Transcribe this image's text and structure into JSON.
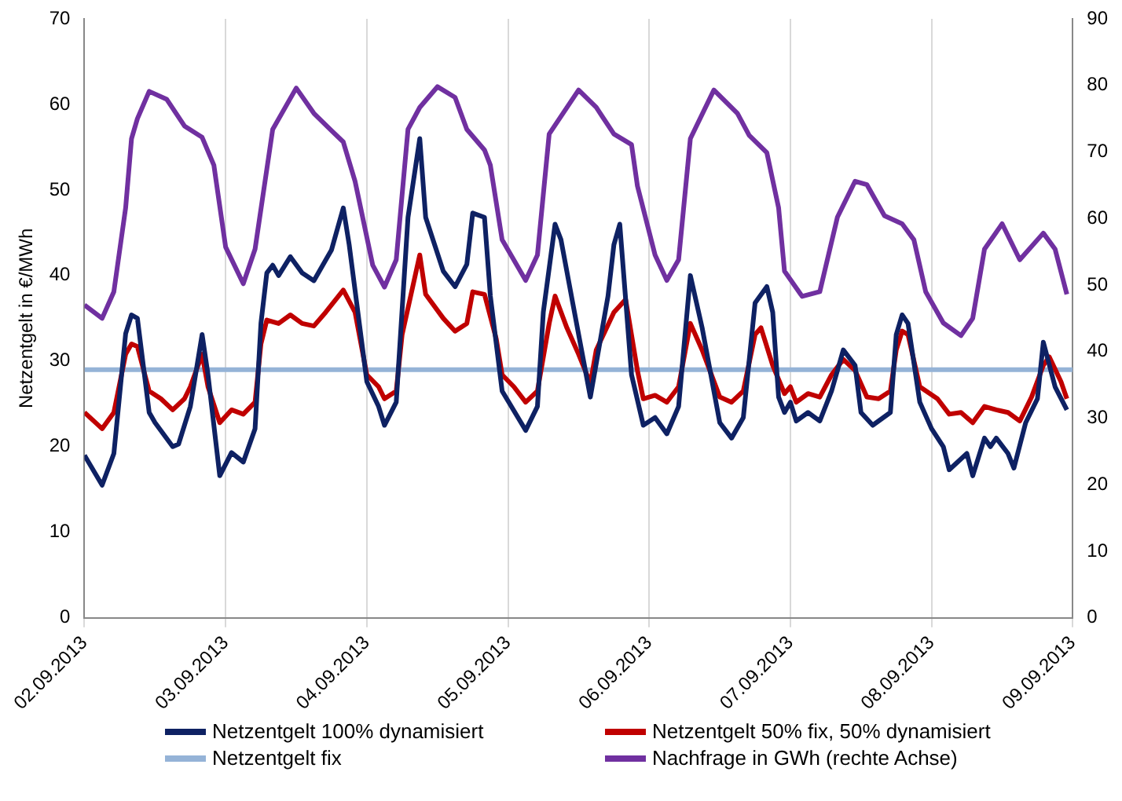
{
  "chart_data": {
    "type": "line",
    "ylabel": "Netzentgelt in €/MWh",
    "xlim": [
      "2013-09-02",
      "2013-09-09"
    ],
    "xticks": [
      {
        "value": "2013-09-02",
        "label": "02.09.2013"
      },
      {
        "value": "2013-09-03",
        "label": "03.09.2013"
      },
      {
        "value": "2013-09-04",
        "label": "04.09.2013"
      },
      {
        "value": "2013-09-05",
        "label": "05.09.2013"
      },
      {
        "value": "2013-09-06",
        "label": "06.09.2013"
      },
      {
        "value": "2013-09-07",
        "label": "07.09.2013"
      },
      {
        "value": "2013-09-08",
        "label": "08.09.2013"
      },
      {
        "value": "2013-09-09",
        "label": "09.09.2013"
      }
    ],
    "ylim": [
      0,
      70
    ],
    "yticks": [
      0,
      10,
      20,
      30,
      40,
      50,
      60,
      70
    ],
    "y2lim": [
      0,
      90
    ],
    "y2ticks": [
      0,
      10,
      20,
      30,
      40,
      50,
      60,
      70,
      80,
      90
    ],
    "grid": "x",
    "legend": "bottom",
    "series": [
      {
        "name": "Netzentgelt 100% dynamisiert",
        "color": "#0e2163",
        "x": [
          "2013-09-02T00:00",
          "2013-09-02T03:00",
          "2013-09-02T05:00",
          "2013-09-02T07:00",
          "2013-09-02T08:00",
          "2013-09-02T09:00",
          "2013-09-02T11:00",
          "2013-09-02T12:00",
          "2013-09-02T15:00",
          "2013-09-02T16:00",
          "2013-09-02T18:00",
          "2013-09-02T20:00",
          "2013-09-02T21:00",
          "2013-09-02T23:00",
          "2013-09-03T01:00",
          "2013-09-03T03:00",
          "2013-09-03T05:00",
          "2013-09-03T06:00",
          "2013-09-03T07:00",
          "2013-09-03T08:00",
          "2013-09-03T09:00",
          "2013-09-03T11:00",
          "2013-09-03T13:00",
          "2013-09-03T15:00",
          "2013-09-03T17:00",
          "2013-09-03T18:00",
          "2013-09-03T20:00",
          "2013-09-03T21:00",
          "2013-09-04T00:00",
          "2013-09-04T02:00",
          "2013-09-04T03:00",
          "2013-09-04T05:00",
          "2013-09-04T07:00",
          "2013-09-04T09:00",
          "2013-09-04T10:00",
          "2013-09-04T13:00",
          "2013-09-04T15:00",
          "2013-09-04T17:00",
          "2013-09-04T18:00",
          "2013-09-04T20:00",
          "2013-09-04T21:00",
          "2013-09-04T23:00",
          "2013-09-05T03:00",
          "2013-09-05T05:00",
          "2013-09-05T06:00",
          "2013-09-05T08:00",
          "2013-09-05T09:00",
          "2013-09-05T11:00",
          "2013-09-05T14:00",
          "2013-09-05T17:00",
          "2013-09-05T18:00",
          "2013-09-05T19:00",
          "2013-09-05T21:00",
          "2013-09-05T23:00",
          "2013-09-06T01:00",
          "2013-09-06T03:00",
          "2013-09-06T05:00",
          "2013-09-06T07:00",
          "2013-09-06T09:00",
          "2013-09-06T12:00",
          "2013-09-06T14:00",
          "2013-09-06T16:00",
          "2013-09-06T18:00",
          "2013-09-06T20:00",
          "2013-09-06T21:00",
          "2013-09-06T22:00",
          "2013-09-06T23:00",
          "2013-09-07T00:00",
          "2013-09-07T01:00",
          "2013-09-07T03:00",
          "2013-09-07T05:00",
          "2013-09-07T07:00",
          "2013-09-07T09:00",
          "2013-09-07T11:00",
          "2013-09-07T12:00",
          "2013-09-07T14:00",
          "2013-09-07T17:00",
          "2013-09-07T18:00",
          "2013-09-07T19:00",
          "2013-09-07T20:00",
          "2013-09-07T22:00",
          "2013-09-08T00:00",
          "2013-09-08T02:00",
          "2013-09-08T03:00",
          "2013-09-08T06:00",
          "2013-09-08T07:00",
          "2013-09-08T09:00",
          "2013-09-08T10:00",
          "2013-09-08T11:00",
          "2013-09-08T13:00",
          "2013-09-08T14:00",
          "2013-09-08T16:00",
          "2013-09-08T18:00",
          "2013-09-08T19:00",
          "2013-09-08T21:00",
          "2013-09-08T23:00"
        ],
        "values": [
          19,
          15.5,
          19.2,
          33.2,
          35.4,
          35,
          24,
          22.8,
          20,
          20.3,
          24.7,
          33.1,
          28.4,
          16.6,
          19.3,
          18.2,
          22.1,
          34.4,
          40.3,
          41.2,
          40,
          42.2,
          40.3,
          39.4,
          41.8,
          43,
          47.9,
          43.6,
          27.6,
          24.7,
          22.5,
          25.2,
          46.8,
          56,
          46.8,
          40.5,
          38.7,
          41.3,
          47.3,
          46.8,
          37.6,
          26.5,
          21.9,
          24.7,
          35.7,
          46,
          44.2,
          36.8,
          25.8,
          37.6,
          43.6,
          46,
          28.4,
          22.5,
          23.4,
          21.5,
          24.7,
          40,
          33.9,
          22.8,
          21,
          23.4,
          36.8,
          38.7,
          35.7,
          25.8,
          24,
          25.2,
          23,
          24,
          23,
          26.5,
          31.3,
          29.5,
          24,
          22.5,
          24,
          33.1,
          35.4,
          34.4,
          25.2,
          22.1,
          20,
          17.3,
          19.2,
          16.6,
          21,
          20,
          21,
          19.2,
          17.5,
          22.8,
          25.6,
          32.2,
          27,
          24.3
        ]
      },
      {
        "name": "Netzentgelt 50% fix, 50% dynamisiert",
        "color": "#c00000",
        "x": [
          "2013-09-02T00:00",
          "2013-09-02T03:00",
          "2013-09-02T05:00",
          "2013-09-02T07:00",
          "2013-09-02T08:00",
          "2013-09-02T09:00",
          "2013-09-02T11:00",
          "2013-09-02T13:00",
          "2013-09-02T15:00",
          "2013-09-02T17:00",
          "2013-09-02T18:00",
          "2013-09-02T20:00",
          "2013-09-02T21:00",
          "2013-09-02T23:00",
          "2013-09-03T01:00",
          "2013-09-03T03:00",
          "2013-09-03T05:00",
          "2013-09-03T06:00",
          "2013-09-03T07:00",
          "2013-09-03T09:00",
          "2013-09-03T11:00",
          "2013-09-03T13:00",
          "2013-09-03T15:00",
          "2013-09-03T17:00",
          "2013-09-03T20:00",
          "2013-09-03T22:00",
          "2013-09-04T00:00",
          "2013-09-04T02:00",
          "2013-09-04T03:00",
          "2013-09-04T05:00",
          "2013-09-04T06:00",
          "2013-09-04T09:00",
          "2013-09-04T10:00",
          "2013-09-04T13:00",
          "2013-09-04T15:00",
          "2013-09-04T17:00",
          "2013-09-04T18:00",
          "2013-09-04T20:00",
          "2013-09-04T22:00",
          "2013-09-04T23:00",
          "2013-09-05T01:00",
          "2013-09-05T03:00",
          "2013-09-05T05:00",
          "2013-09-05T07:00",
          "2013-09-05T08:00",
          "2013-09-05T10:00",
          "2013-09-05T12:00",
          "2013-09-05T14:00",
          "2013-09-05T15:00",
          "2013-09-05T18:00",
          "2013-09-05T20:00",
          "2013-09-05T22:00",
          "2013-09-05T23:00",
          "2013-09-06T01:00",
          "2013-09-06T03:00",
          "2013-09-06T05:00",
          "2013-09-06T07:00",
          "2013-09-06T09:00",
          "2013-09-06T12:00",
          "2013-09-06T14:00",
          "2013-09-06T16:00",
          "2013-09-06T18:00",
          "2013-09-06T19:00",
          "2013-09-06T21:00",
          "2013-09-06T23:00",
          "2013-09-07T00:00",
          "2013-09-07T01:00",
          "2013-09-07T03:00",
          "2013-09-07T05:00",
          "2013-09-07T07:00",
          "2013-09-07T09:00",
          "2013-09-07T11:00",
          "2013-09-07T13:00",
          "2013-09-07T15:00",
          "2013-09-07T17:00",
          "2013-09-07T18:00",
          "2013-09-07T19:00",
          "2013-09-07T20:00",
          "2013-09-07T22:00",
          "2013-09-08T01:00",
          "2013-09-08T03:00",
          "2013-09-08T05:00",
          "2013-09-08T07:00",
          "2013-09-08T09:00",
          "2013-09-08T11:00",
          "2013-09-08T13:00",
          "2013-09-08T15:00",
          "2013-09-08T17:00",
          "2013-09-08T19:00",
          "2013-09-08T20:00",
          "2013-09-08T22:00",
          "2013-09-08T23:00"
        ],
        "values": [
          24,
          22.1,
          24,
          30.8,
          32,
          31.7,
          26.5,
          25.6,
          24.3,
          25.6,
          27,
          30.8,
          27,
          22.8,
          24.3,
          23.8,
          25.2,
          32,
          34.8,
          34.4,
          35.4,
          34.4,
          34.1,
          35.7,
          38.3,
          35.7,
          28.4,
          27,
          25.6,
          26.5,
          33.1,
          42.4,
          37.8,
          35,
          33.5,
          34.4,
          38.1,
          37.8,
          32.6,
          28.4,
          27,
          25.2,
          26.5,
          34.4,
          37.6,
          33.9,
          30.8,
          27.4,
          31.3,
          35.7,
          37.2,
          28.9,
          25.6,
          26,
          25.2,
          27,
          34.4,
          31.3,
          25.8,
          25.2,
          26.5,
          33.1,
          33.9,
          29.5,
          26.2,
          27,
          25.2,
          26.2,
          25.8,
          28.4,
          30.2,
          28.9,
          25.8,
          25.6,
          26.5,
          31.3,
          33.5,
          33.1,
          27,
          25.6,
          23.8,
          24,
          22.8,
          24.7,
          24.3,
          24,
          23,
          25.8,
          29.5,
          30.5,
          27.6,
          25.6
        ]
      },
      {
        "name": "Netzentgelt fix",
        "color": "#95b3d7",
        "x": [
          "2013-09-02T00:00",
          "2013-09-09T00:00"
        ],
        "values": [
          29,
          29
        ]
      },
      {
        "name": "Nachfrage in GWh (rechte Achse)",
        "color": "#7030a0",
        "axis": "y2",
        "x": [
          "2013-09-02T00:00",
          "2013-09-02T03:00",
          "2013-09-02T05:00",
          "2013-09-02T07:00",
          "2013-09-02T08:00",
          "2013-09-02T09:00",
          "2013-09-02T11:00",
          "2013-09-02T14:00",
          "2013-09-02T17:00",
          "2013-09-02T20:00",
          "2013-09-02T22:00",
          "2013-09-03T00:00",
          "2013-09-03T03:00",
          "2013-09-03T05:00",
          "2013-09-03T08:00",
          "2013-09-03T12:00",
          "2013-09-03T15:00",
          "2013-09-03T18:00",
          "2013-09-03T20:00",
          "2013-09-03T22:00",
          "2013-09-04T01:00",
          "2013-09-04T03:00",
          "2013-09-04T05:00",
          "2013-09-04T07:00",
          "2013-09-04T09:00",
          "2013-09-04T12:00",
          "2013-09-04T15:00",
          "2013-09-04T17:00",
          "2013-09-04T20:00",
          "2013-09-04T21:00",
          "2013-09-04T23:00",
          "2013-09-05T03:00",
          "2013-09-05T05:00",
          "2013-09-05T07:00",
          "2013-09-05T12:00",
          "2013-09-05T15:00",
          "2013-09-05T18:00",
          "2013-09-05T21:00",
          "2013-09-05T22:00",
          "2013-09-06T01:00",
          "2013-09-06T03:00",
          "2013-09-06T05:00",
          "2013-09-06T07:00",
          "2013-09-06T11:00",
          "2013-09-06T15:00",
          "2013-09-06T17:00",
          "2013-09-06T20:00",
          "2013-09-06T22:00",
          "2013-09-06T23:00",
          "2013-09-07T02:00",
          "2013-09-07T05:00",
          "2013-09-07T08:00",
          "2013-09-07T11:00",
          "2013-09-07T13:00",
          "2013-09-07T16:00",
          "2013-09-07T19:00",
          "2013-09-07T21:00",
          "2013-09-07T23:00",
          "2013-09-08T02:00",
          "2013-09-08T05:00",
          "2013-09-08T07:00",
          "2013-09-08T09:00",
          "2013-09-08T12:00",
          "2013-09-08T15:00",
          "2013-09-08T19:00",
          "2013-09-08T21:00",
          "2013-09-08T23:00"
        ],
        "values": [
          47,
          45,
          49,
          61.6,
          72,
          75,
          79.1,
          77.9,
          73.9,
          72.2,
          68,
          55.7,
          50.2,
          55.4,
          73.4,
          79.6,
          75.8,
          73.2,
          71.5,
          65.6,
          53,
          49.7,
          53.8,
          73.4,
          76.7,
          79.8,
          78.2,
          73.4,
          70.3,
          68,
          56.8,
          50.7,
          54.5,
          72.7,
          79.3,
          76.7,
          72.7,
          71.1,
          64.9,
          54.5,
          50.7,
          53.8,
          72,
          79.3,
          75.8,
          72.5,
          69.9,
          61.6,
          52.1,
          48.3,
          49,
          60.2,
          65.6,
          65.1,
          60.4,
          59.2,
          56.8,
          49,
          44.3,
          42.4,
          45,
          55.4,
          59.2,
          53.8,
          57.8,
          55.4,
          48.6
        ]
      }
    ]
  }
}
